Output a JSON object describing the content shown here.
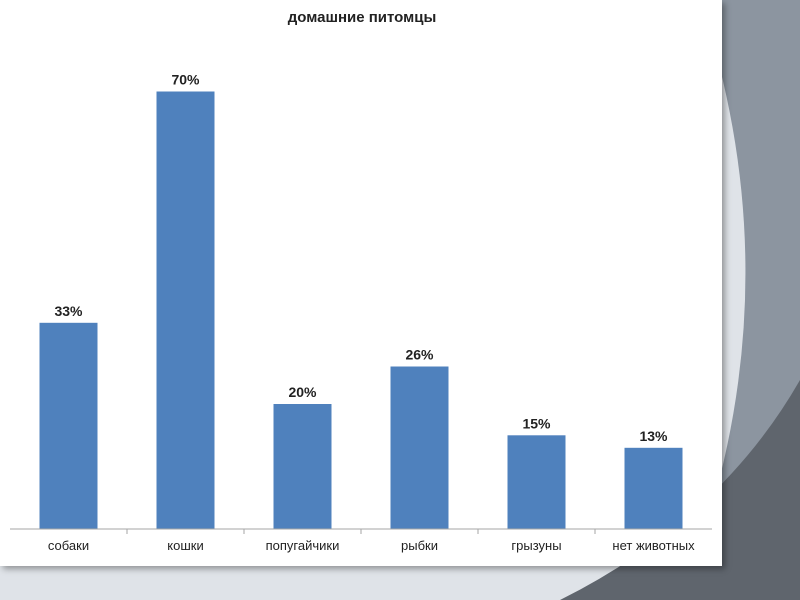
{
  "chart_data": {
    "type": "bar",
    "title": "домашние питомцы",
    "categories": [
      "собаки",
      "кошки",
      "попугайчики",
      "рыбки",
      "грызуны",
      "нет животных"
    ],
    "values": [
      33,
      70,
      20,
      26,
      15,
      13
    ],
    "data_labels": [
      "33%",
      "70%",
      "20%",
      "26%",
      "15%",
      "13%"
    ],
    "xlabel": "",
    "ylabel": "",
    "ylim": [
      0,
      80
    ],
    "grid": false,
    "legend": "none",
    "bar_color": "#4f81bd"
  },
  "colors": {
    "background_gray": "#8c95a0",
    "background_dark": "#5f656d",
    "axis_line": "#a6a6a6"
  }
}
